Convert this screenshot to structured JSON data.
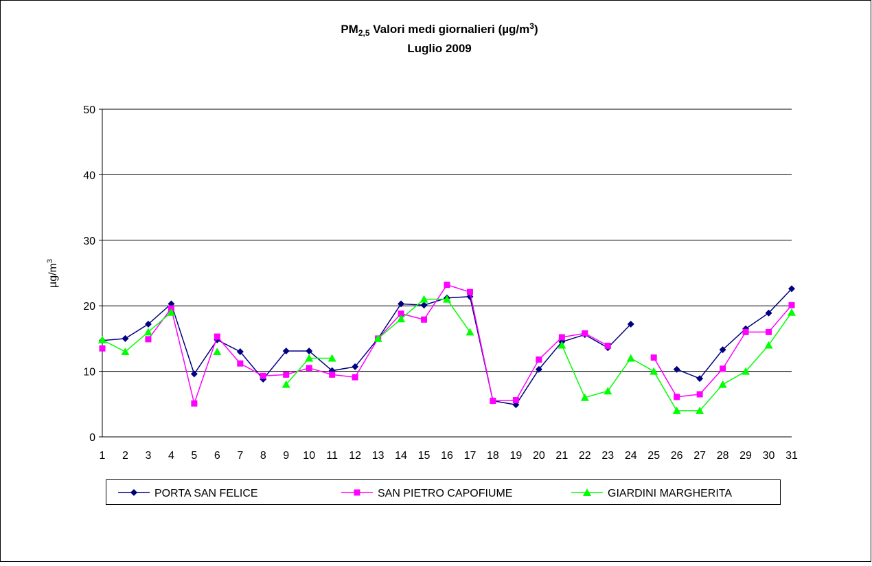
{
  "chart_data": {
    "type": "line",
    "title": [
      "PM",
      "2,5",
      " Valori medi giornalieri (µg/m",
      "3",
      ")"
    ],
    "subtitle": "Luglio 2009",
    "y_label": [
      "µg/m",
      "3"
    ],
    "categories": [
      1,
      2,
      3,
      4,
      5,
      6,
      7,
      8,
      9,
      10,
      11,
      12,
      13,
      14,
      15,
      16,
      17,
      18,
      19,
      20,
      21,
      22,
      23,
      24,
      25,
      26,
      27,
      28,
      29,
      30,
      31
    ],
    "series": [
      {
        "name": "PORTA SAN FELICE",
        "color": "#000080",
        "marker": "diamond",
        "values": [
          14.7,
          15.0,
          17.2,
          20.3,
          9.6,
          14.8,
          13.0,
          8.8,
          13.1,
          13.1,
          10.1,
          10.7,
          15.0,
          20.3,
          20.1,
          21.2,
          21.4,
          5.5,
          4.9,
          10.3,
          14.5,
          15.6,
          13.6,
          17.2,
          null,
          10.3,
          8.9,
          13.3,
          16.5,
          18.9,
          22.6
        ]
      },
      {
        "name": "SAN PIETRO CAPOFIUME",
        "color": "#ff00ff",
        "marker": "square",
        "values": [
          13.5,
          null,
          14.9,
          19.6,
          5.1,
          15.3,
          11.2,
          9.3,
          9.5,
          10.5,
          9.5,
          9.1,
          15.0,
          18.8,
          17.9,
          23.2,
          22.1,
          5.5,
          5.6,
          11.8,
          15.2,
          15.8,
          13.9,
          null,
          12.1,
          6.1,
          6.5,
          10.4,
          16.0,
          16.0,
          20.1
        ]
      },
      {
        "name": "GIARDINI MARGHERITA",
        "color": "#00ff00",
        "marker": "triangle",
        "values": [
          14.8,
          13,
          16,
          19,
          null,
          13,
          null,
          null,
          8,
          12,
          12,
          null,
          15,
          18,
          21,
          21,
          16,
          null,
          null,
          null,
          14,
          6,
          7,
          12,
          10,
          4,
          4,
          8,
          10,
          14,
          19
        ]
      }
    ],
    "ylim": [
      0,
      50
    ],
    "yticks": [
      0,
      10,
      20,
      30,
      40,
      50
    ],
    "grid": true,
    "legend": "bottom"
  }
}
